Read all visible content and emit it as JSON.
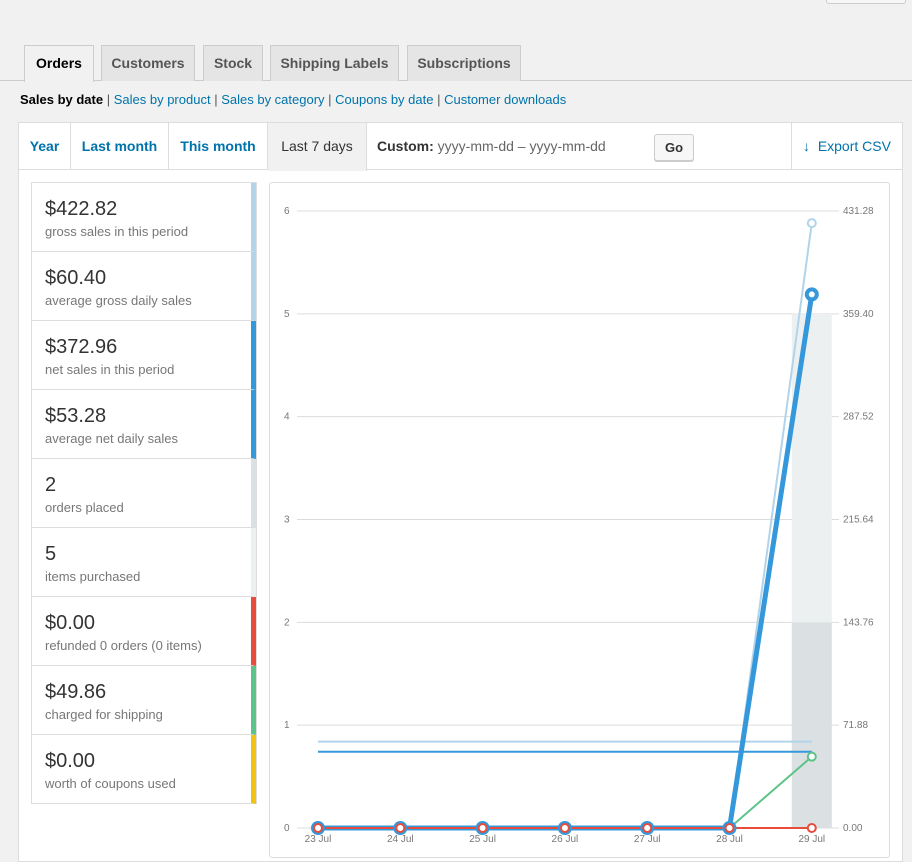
{
  "tabs": [
    {
      "label": "Orders",
      "active": true
    },
    {
      "label": "Customers",
      "active": false
    },
    {
      "label": "Stock",
      "active": false
    },
    {
      "label": "Shipping Labels",
      "active": false
    },
    {
      "label": "Subscriptions",
      "active": false
    }
  ],
  "subnav": {
    "current": "Sales by date",
    "links": [
      "Sales by product",
      "Sales by category",
      "Coupons by date",
      "Customer downloads"
    ]
  },
  "ranges": {
    "year": "Year",
    "last_month": "Last month",
    "this_month": "This month",
    "last_7_days": "Last 7 days",
    "active": "last_7_days"
  },
  "custom": {
    "label": "Custom:",
    "start_placeholder": "yyyy-mm-dd",
    "separator": "–",
    "end_placeholder": "yyyy-mm-dd",
    "go": "Go"
  },
  "export": {
    "label": "Export CSV",
    "icon": "download-arrow-icon"
  },
  "legend": [
    {
      "value": "$422.82",
      "label": "gross sales in this period",
      "color": "#b1d4ea"
    },
    {
      "value": "$60.40",
      "label": "average gross daily sales",
      "color": "#b1d4ea"
    },
    {
      "value": "$372.96",
      "label": "net sales in this period",
      "color": "#3498db"
    },
    {
      "value": "$53.28",
      "label": "average net daily sales",
      "color": "#3498db"
    },
    {
      "value": "2",
      "label": "orders placed",
      "color": "#dbe1e3"
    },
    {
      "value": "5",
      "label": "items purchased",
      "color": "#ecf0f1"
    },
    {
      "value": "$0.00",
      "label": "refunded 0 orders (0 items)",
      "color": "#e74c3c"
    },
    {
      "value": "$49.86",
      "label": "charged for shipping",
      "color": "#5cc488"
    },
    {
      "value": "$0.00",
      "label": "worth of coupons used",
      "color": "#f1c40f"
    }
  ],
  "chart_data": {
    "type": "line",
    "x": [
      "23 Jul",
      "24 Jul",
      "25 Jul",
      "26 Jul",
      "27 Jul",
      "28 Jul",
      "29 Jul"
    ],
    "y_left_ticks": [
      "0",
      "1",
      "2",
      "3",
      "4",
      "5",
      "6"
    ],
    "y_right_ticks": [
      "0.00",
      "71.88",
      "143.76",
      "215.64",
      "287.52",
      "359.40",
      "431.28"
    ],
    "ylim_left": [
      0,
      6
    ],
    "ylim_right": [
      0,
      431.28
    ],
    "grid": true,
    "bars": [
      {
        "name": "items purchased",
        "axis": "left",
        "values": [
          0,
          0,
          0,
          0,
          0,
          0,
          5
        ],
        "color": "#ecf0f1"
      },
      {
        "name": "orders placed",
        "axis": "left",
        "values": [
          0,
          0,
          0,
          0,
          0,
          0,
          2
        ],
        "color": "#dbe1e3"
      }
    ],
    "series": [
      {
        "name": "gross sales",
        "axis": "right",
        "values": [
          0,
          0,
          0,
          0,
          0,
          0,
          422.82
        ],
        "color": "#b1d4ea",
        "width": 2
      },
      {
        "name": "net sales",
        "axis": "right",
        "values": [
          0,
          0,
          0,
          0,
          0,
          0,
          372.96
        ],
        "color": "#3498db",
        "width": 5
      },
      {
        "name": "shipping",
        "axis": "right",
        "values": [
          0,
          0,
          0,
          0,
          0,
          0,
          49.86
        ],
        "color": "#5cc488",
        "width": 2
      },
      {
        "name": "coupons",
        "axis": "right",
        "values": [
          0,
          0,
          0,
          0,
          0,
          0,
          0
        ],
        "color": "#f1c40f",
        "width": 2
      },
      {
        "name": "refunds",
        "axis": "right",
        "values": [
          0,
          0,
          0,
          0,
          0,
          0,
          0
        ],
        "color": "#e74c3c",
        "width": 2
      }
    ],
    "averages": [
      {
        "name": "average gross daily sales",
        "axis": "right",
        "value": 60.4,
        "color": "#b1d4ea"
      },
      {
        "name": "average net daily sales",
        "axis": "right",
        "value": 53.28,
        "color": "#3498db"
      }
    ]
  }
}
